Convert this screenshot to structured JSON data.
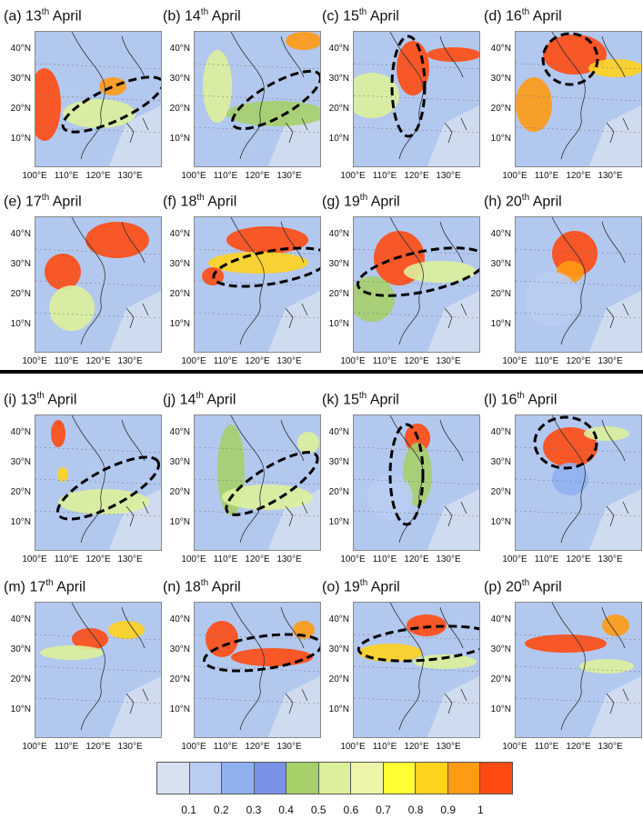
{
  "panels": [
    {
      "letter": "(a)",
      "day": "13",
      "suffix": "th",
      "month": "April"
    },
    {
      "letter": "(b)",
      "day": "14",
      "suffix": "th",
      "month": "April"
    },
    {
      "letter": "(c)",
      "day": "15",
      "suffix": "th",
      "month": "April"
    },
    {
      "letter": "(d)",
      "day": "16",
      "suffix": "th",
      "month": "April"
    },
    {
      "letter": "(e)",
      "day": "17",
      "suffix": "th",
      "month": "April"
    },
    {
      "letter": "(f)",
      "day": "18",
      "suffix": "th",
      "month": "April"
    },
    {
      "letter": "(g)",
      "day": "19",
      "suffix": "th",
      "month": "April"
    },
    {
      "letter": "(h)",
      "day": "20",
      "suffix": "th",
      "month": "April"
    },
    {
      "letter": "(i)",
      "day": "13",
      "suffix": "th",
      "month": "April"
    },
    {
      "letter": "(j)",
      "day": "14",
      "suffix": "th",
      "month": "April"
    },
    {
      "letter": "(k)",
      "day": "15",
      "suffix": "th",
      "month": "April"
    },
    {
      "letter": "(l)",
      "day": "16",
      "suffix": "th",
      "month": "April"
    },
    {
      "letter": "(m)",
      "day": "17",
      "suffix": "th",
      "month": "April"
    },
    {
      "letter": "(n)",
      "day": "18",
      "suffix": "th",
      "month": "April"
    },
    {
      "letter": "(o)",
      "day": "19",
      "suffix": "th",
      "month": "April"
    },
    {
      "letter": "(p)",
      "day": "20",
      "suffix": "th",
      "month": "April"
    }
  ],
  "lat_labels": [
    "40°N",
    "30°N",
    "20°N",
    "10°N"
  ],
  "lon_labels": [
    "100°E",
    "110°E",
    "120°E",
    "130°E"
  ],
  "colorbar": {
    "colors": [
      "#d7e1f0",
      "#b9cdf2",
      "#8fb1f0",
      "#7a92e6",
      "#a6cf6a",
      "#dcef9a",
      "#eef5a8",
      "#ffff33",
      "#ffd21e",
      "#ff9a14",
      "#ff4a12"
    ],
    "ticks": [
      "0.1",
      "0.2",
      "0.3",
      "0.4",
      "0.5",
      "0.6",
      "0.7",
      "0.8",
      "0.9",
      "1"
    ]
  }
}
